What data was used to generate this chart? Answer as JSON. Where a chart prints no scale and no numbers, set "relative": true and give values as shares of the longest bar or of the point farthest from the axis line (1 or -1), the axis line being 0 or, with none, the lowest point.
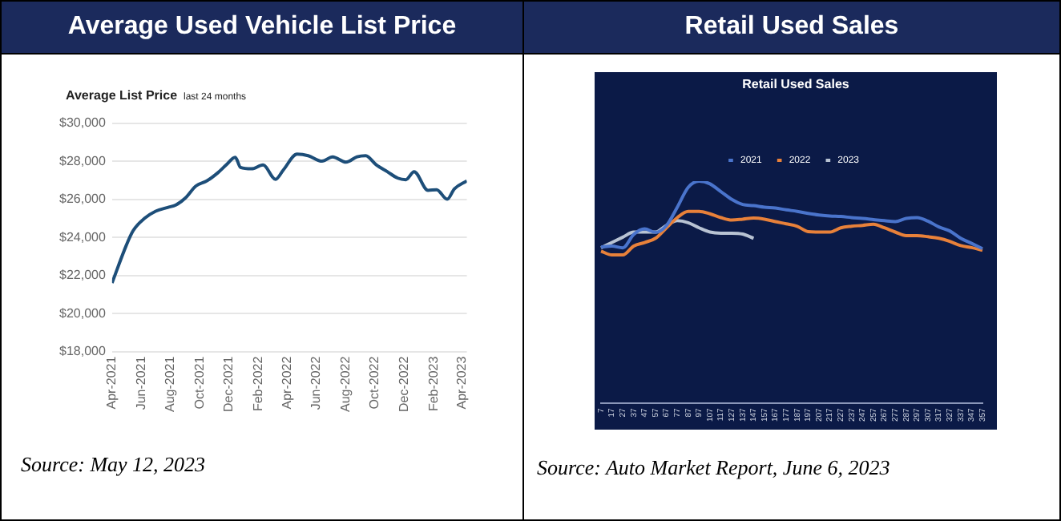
{
  "chart_data": [
    {
      "type": "line",
      "title": "Average Used Vehicle List Price",
      "subtitle": "Average List Price",
      "annotations": [
        "last 24 months",
        "Source: May 12, 2023"
      ],
      "color": "#1d4e79",
      "marker": "none",
      "grid": "y",
      "x": [
        "2021-04-01",
        "2021-05-01",
        "2021-05-15",
        "2021-06-08",
        "2021-07-01",
        "2021-07-26",
        "2021-08-12",
        "2021-09-01",
        "2021-09-23",
        "2021-10-16",
        "2021-11-08",
        "2021-11-25",
        "2021-12-14",
        "2021-12-25",
        "2022-01-17",
        "2022-02-10",
        "2022-03-08",
        "2022-03-24",
        "2022-04-22",
        "2022-05-15",
        "2022-06-13",
        "2022-07-05",
        "2022-08-02",
        "2022-08-25",
        "2022-09-12",
        "2022-10-04",
        "2022-10-27",
        "2022-11-18",
        "2022-12-05",
        "2022-12-22",
        "2023-01-20",
        "2023-02-07",
        "2023-03-01",
        "2023-03-16",
        "2023-04-11"
      ],
      "values": [
        21600,
        23600,
        24350,
        25000,
        25370,
        25570,
        25700,
        26070,
        26700,
        26970,
        27400,
        27800,
        28200,
        27670,
        27600,
        27800,
        27050,
        27530,
        28370,
        28290,
        28000,
        28230,
        27950,
        28230,
        28290,
        27810,
        27450,
        27110,
        27030,
        27450,
        26470,
        26500,
        26000,
        26550,
        26970
      ],
      "xlim": [
        "2021-04-01",
        "2023-04-11"
      ],
      "xticks": [
        {
          "value": "2021-04-01",
          "label": "Apr-2021"
        },
        {
          "value": "2021-06-01",
          "label": "Jun-2021"
        },
        {
          "value": "2021-08-01",
          "label": "Aug-2021"
        },
        {
          "value": "2021-10-01",
          "label": "Oct-2021"
        },
        {
          "value": "2021-12-01",
          "label": "Dec-2021"
        },
        {
          "value": "2022-02-01",
          "label": "Feb-2022"
        },
        {
          "value": "2022-04-01",
          "label": "Apr-2022"
        },
        {
          "value": "2022-06-01",
          "label": "Jun-2022"
        },
        {
          "value": "2022-08-01",
          "label": "Aug-2022"
        },
        {
          "value": "2022-10-01",
          "label": "Oct-2022"
        },
        {
          "value": "2022-12-01",
          "label": "Dec-2022"
        },
        {
          "value": "2023-02-01",
          "label": "Feb-2023"
        },
        {
          "value": "2023-04-01",
          "label": "Apr-2023"
        }
      ],
      "ylim": [
        18000,
        30000
      ],
      "yticks": [
        {
          "value": 18000,
          "label": "$18,000"
        },
        {
          "value": 20000,
          "label": "$20,000"
        },
        {
          "value": 22000,
          "label": "$22,000"
        },
        {
          "value": 24000,
          "label": "$24,000"
        },
        {
          "value": 26000,
          "label": "$26,000"
        },
        {
          "value": 28000,
          "label": "$28,000"
        },
        {
          "value": 30000,
          "label": "$30,000"
        }
      ]
    },
    {
      "type": "line",
      "title": "Retail Used Sales",
      "subtitle": "Retail Used Sales",
      "annotations": [
        "Source: Auto Market Report, June 6, 2023"
      ],
      "relative": true,
      "legend": "top",
      "marker": "none",
      "tick_labels": "x",
      "categories": [
        "7",
        "17",
        "27",
        "37",
        "47",
        "57",
        "67",
        "77",
        "87",
        "97",
        "107",
        "117",
        "127",
        "137",
        "147",
        "157",
        "167",
        "177",
        "187",
        "197",
        "207",
        "217",
        "227",
        "237",
        "247",
        "257",
        "267",
        "277",
        "287",
        "297",
        "307",
        "317",
        "327",
        "337",
        "347",
        "357"
      ],
      "series": [
        {
          "name": "2021",
          "color": "#4a74cc",
          "values": [
            0.703,
            0.708,
            0.7,
            0.76,
            0.785,
            0.77,
            0.8,
            0.883,
            0.972,
            1.0,
            0.988,
            0.953,
            0.918,
            0.895,
            0.89,
            0.883,
            0.879,
            0.871,
            0.864,
            0.855,
            0.848,
            0.843,
            0.841,
            0.836,
            0.832,
            0.827,
            0.822,
            0.818,
            0.832,
            0.836,
            0.82,
            0.794,
            0.776,
            0.743,
            0.72,
            0.696
          ]
        },
        {
          "name": "2022",
          "color": "#e8813a",
          "values": [
            0.685,
            0.668,
            0.668,
            0.708,
            0.724,
            0.743,
            0.79,
            0.836,
            0.864,
            0.864,
            0.853,
            0.836,
            0.825,
            0.829,
            0.834,
            0.829,
            0.818,
            0.808,
            0.797,
            0.773,
            0.771,
            0.771,
            0.79,
            0.797,
            0.801,
            0.806,
            0.79,
            0.771,
            0.755,
            0.755,
            0.75,
            0.743,
            0.729,
            0.71,
            0.701,
            0.689
          ]
        },
        {
          "name": "2023",
          "color": "#b8c3d3",
          "values": [
            0.7,
            0.724,
            0.748,
            0.771,
            0.771,
            0.771,
            0.801,
            0.822,
            0.813,
            0.79,
            0.771,
            0.766,
            0.766,
            0.762,
            0.743,
            null,
            null,
            null,
            null,
            null,
            null,
            null,
            null,
            null,
            null,
            null,
            null,
            null,
            null,
            null,
            null,
            null,
            null,
            null,
            null,
            null
          ]
        }
      ]
    }
  ]
}
